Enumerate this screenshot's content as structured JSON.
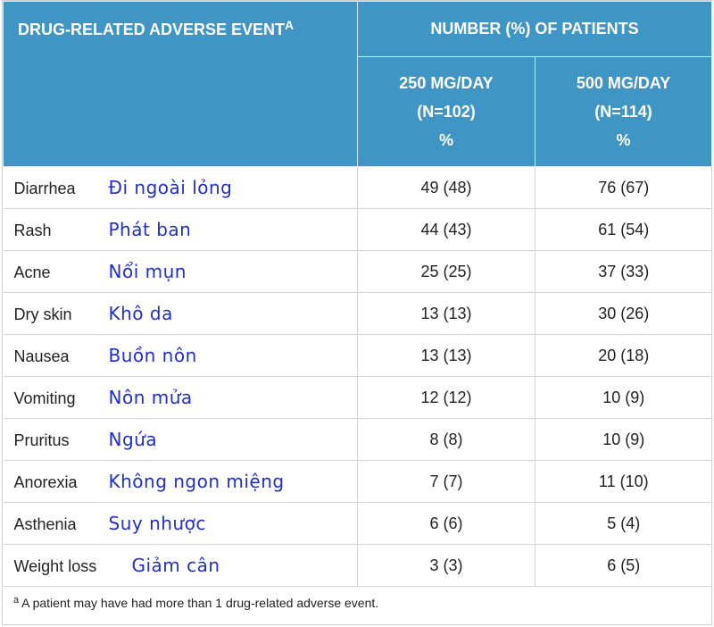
{
  "header": {
    "event_title": "DRUG-RELATED ADVERSE EVENT",
    "event_title_sup": "A",
    "group_title": "NUMBER (%) OF PATIENTS",
    "col1_line1": "250 MG/DAY",
    "col1_line2": "(N=102)",
    "col1_line3": "%",
    "col2_line1": "500 MG/DAY",
    "col2_line2": "(N=114)",
    "col2_line3": "%"
  },
  "rows": [
    {
      "event": "Diarrhea",
      "vi": "Đi ngoài lỏng",
      "d250": "49 (48)",
      "d500": "76 (67)"
    },
    {
      "event": "Rash",
      "vi": "Phát ban",
      "d250": "44 (43)",
      "d500": "61 (54)"
    },
    {
      "event": "Acne",
      "vi": "Nổi mụn",
      "d250": "25 (25)",
      "d500": "37 (33)"
    },
    {
      "event": "Dry skin",
      "vi": "Khô da",
      "d250": "13 (13)",
      "d500": "30 (26)"
    },
    {
      "event": "Nausea",
      "vi": "Buồn nôn",
      "d250": "13 (13)",
      "d500": "20 (18)"
    },
    {
      "event": "Vomiting",
      "vi": "Nôn mửa",
      "d250": "12 (12)",
      "d500": "10 (9)"
    },
    {
      "event": "Pruritus",
      "vi": "Ngứa",
      "d250": "8 (8)",
      "d500": "10 (9)"
    },
    {
      "event": "Anorexia",
      "vi": "Không ngon miệng",
      "d250": "7 (7)",
      "d500": "11 (10)"
    },
    {
      "event": "Asthenia",
      "vi": "Suy nhược",
      "d250": "6 (6)",
      "d500": "5 (4)"
    },
    {
      "event": "Weight loss",
      "vi": "Giảm cân",
      "d250": "3 (3)",
      "d500": "6 (5)"
    }
  ],
  "footnote": {
    "marker": "a",
    "text": "A patient may have had more than 1 drug-related adverse event."
  }
}
